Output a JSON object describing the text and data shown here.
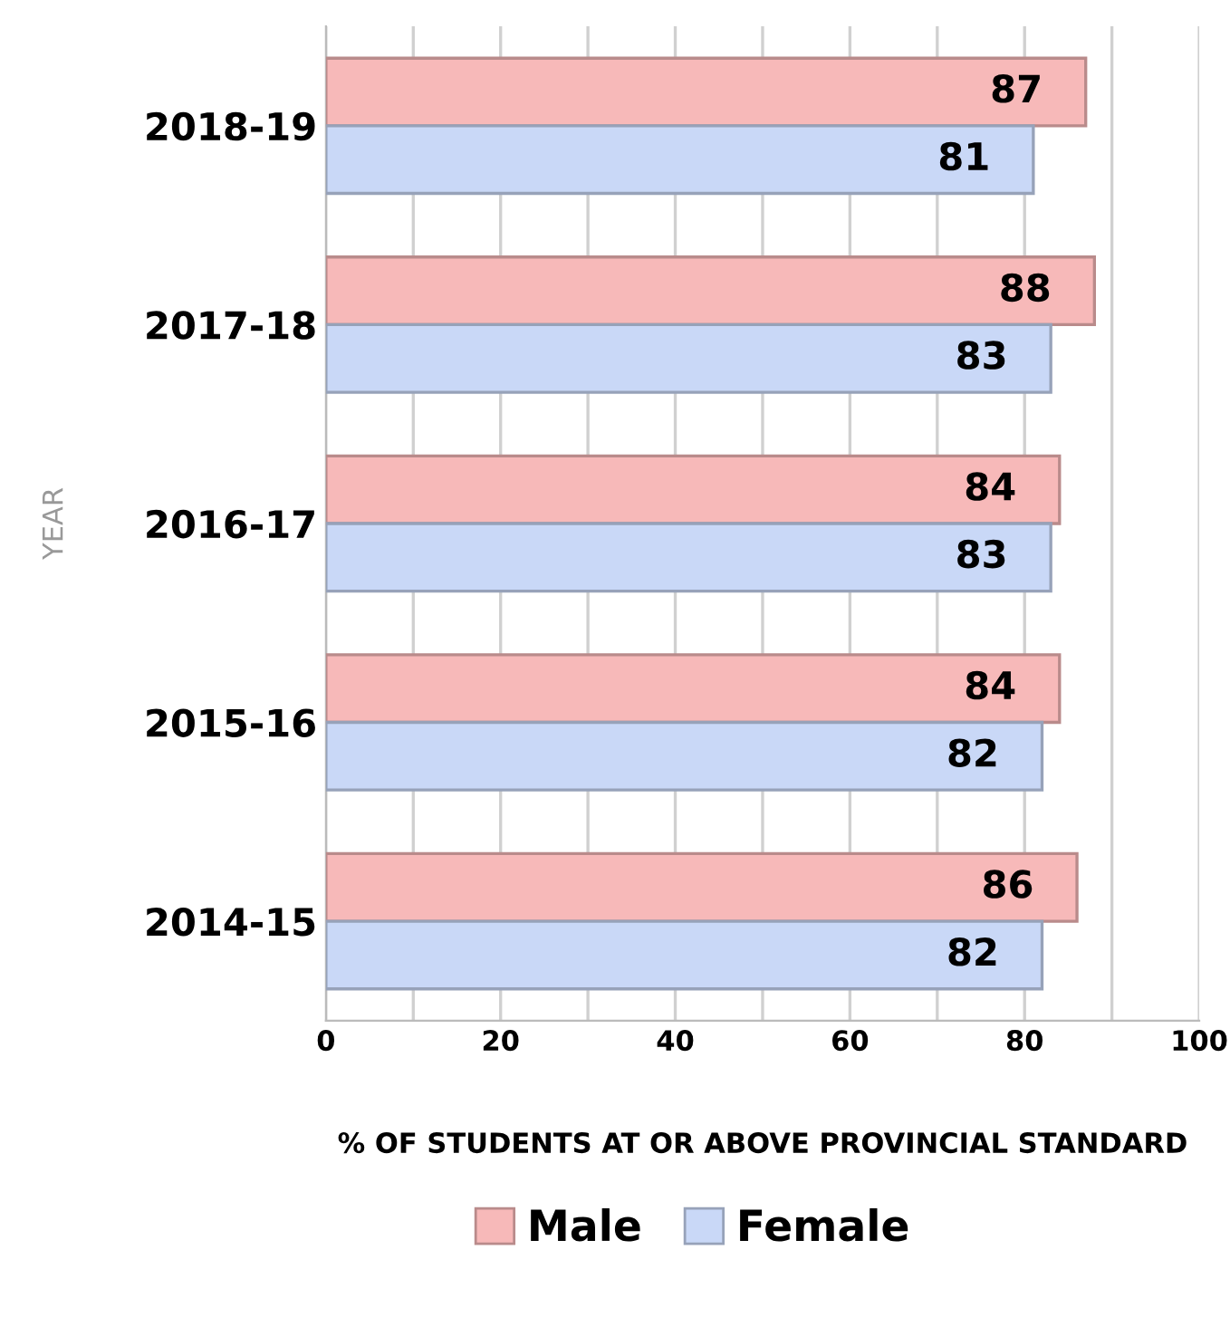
{
  "chart_data": {
    "type": "bar",
    "orientation": "horizontal",
    "xlabel": "% OF STUDENTS AT OR ABOVE PROVINCIAL STANDARD",
    "ylabel": "YEAR",
    "categories": [
      "2018-19",
      "2017-18",
      "2016-17",
      "2015-16",
      "2014-15"
    ],
    "series": [
      {
        "name": "Male",
        "color": "#f7b9b9",
        "values": [
          87,
          88,
          84,
          84,
          86
        ]
      },
      {
        "name": "Female",
        "color": "#c9d8f7",
        "values": [
          81,
          83,
          83,
          82,
          82
        ]
      }
    ],
    "xlim": [
      0,
      100
    ],
    "xticks": [
      0,
      {
        "value": 10,
        "label": null
      },
      20,
      {
        "value": 30,
        "label": null
      },
      40,
      {
        "value": 50,
        "label": null
      },
      60,
      {
        "value": 70,
        "label": null
      },
      80,
      {
        "value": 90,
        "label": null
      },
      100
    ],
    "grid": "x",
    "legend": "bottom",
    "data_labels": true
  }
}
